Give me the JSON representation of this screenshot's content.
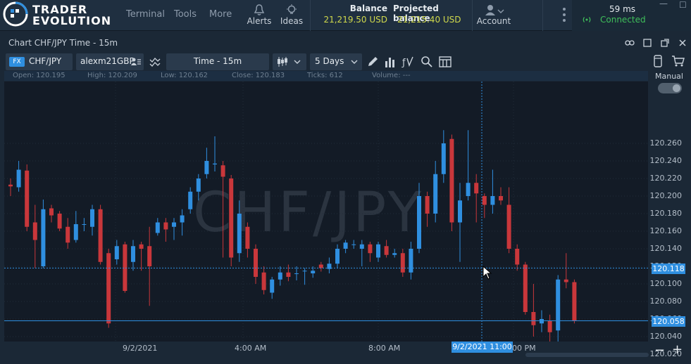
{
  "app": {
    "logo_line1": "TRADER",
    "logo_line2": "EVOLUTION",
    "menu": [
      "Terminal",
      "Tools",
      "More"
    ],
    "alerts_label": "Alerts",
    "ideas_label": "Ideas",
    "balance_label": "Balance",
    "balance_value": "21,219.50 USD",
    "projected_label": "Projected balance",
    "projected_value": "21,215.40 USD",
    "account_label": "Account",
    "ping": "59 ms",
    "connection": "Connected"
  },
  "chart_window": {
    "title": "Chart CHF/JPY Time - 15m",
    "fx_badge": "FX",
    "symbol": "CHF/JPY",
    "account": "alexm21GBP",
    "timeframe": "Time - 15m",
    "range": "5 Days",
    "manual_label": "Manual"
  },
  "info": {
    "open": "Open:  120.195",
    "high": "High:  120.209",
    "low": "Low:  120.162",
    "close": "Close:  120.183",
    "ticks": "Ticks:  612",
    "volume": "Volume:  ---"
  },
  "colors": {
    "up": "#2f8fe0",
    "down": "#c9373b",
    "accent": "#2f8fe0"
  },
  "chart_data": {
    "type": "candlestick",
    "title": "CHF/JPY",
    "ylim": [
      120.0,
      120.28
    ],
    "y_ticks": [
      "120.260",
      "120.240",
      "120.220",
      "120.200",
      "120.180",
      "120.160",
      "120.140",
      "120.120",
      "120.100",
      "120.080",
      "120.060",
      "120.040",
      "120.020"
    ],
    "x_ticks": [
      "9/2/2021",
      "4:00 AM",
      "8:00 AM",
      "00 PM"
    ],
    "crosshair_price": "120.118",
    "crosshair_time": "9/2/2021 11:00",
    "last_price": "120.058",
    "candles": [
      {
        "i": 0,
        "o": 120.213,
        "c": 120.211,
        "h": 120.22,
        "l": 120.2
      },
      {
        "i": 1,
        "o": 120.21,
        "c": 120.23,
        "h": 120.24,
        "l": 120.205
      },
      {
        "i": 2,
        "o": 120.229,
        "c": 120.165,
        "h": 120.236,
        "l": 120.16
      },
      {
        "i": 3,
        "o": 120.17,
        "c": 120.15,
        "h": 120.19,
        "l": 120.118
      },
      {
        "i": 4,
        "o": 120.12,
        "c": 120.185,
        "h": 120.196,
        "l": 120.118
      },
      {
        "i": 5,
        "o": 120.186,
        "c": 120.178,
        "h": 120.19,
        "l": 120.17
      },
      {
        "i": 6,
        "o": 120.18,
        "c": 120.163,
        "h": 120.183,
        "l": 120.16
      },
      {
        "i": 7,
        "o": 120.165,
        "c": 120.147,
        "h": 120.175,
        "l": 120.14
      },
      {
        "i": 8,
        "o": 120.15,
        "c": 120.168,
        "h": 120.183,
        "l": 120.147
      },
      {
        "i": 9,
        "o": 120.168,
        "c": 120.168,
        "h": 120.175,
        "l": 120.16
      },
      {
        "i": 10,
        "o": 120.165,
        "c": 120.185,
        "h": 120.19,
        "l": 120.155
      },
      {
        "i": 11,
        "o": 120.185,
        "c": 120.125,
        "h": 120.19,
        "l": 120.122
      },
      {
        "i": 12,
        "o": 120.135,
        "c": 120.055,
        "h": 120.14,
        "l": 120.05
      },
      {
        "i": 13,
        "o": 120.128,
        "c": 120.143,
        "h": 120.15,
        "l": 120.122
      },
      {
        "i": 14,
        "o": 120.145,
        "c": 120.092,
        "h": 120.148,
        "l": 120.09
      },
      {
        "i": 15,
        "o": 120.125,
        "c": 120.143,
        "h": 120.15,
        "l": 120.115
      },
      {
        "i": 16,
        "o": 120.145,
        "c": 120.14,
        "h": 120.148,
        "l": 120.115
      },
      {
        "i": 17,
        "o": 120.143,
        "c": 120.12,
        "h": 120.165,
        "l": 120.075
      },
      {
        "i": 18,
        "o": 120.158,
        "c": 120.17,
        "h": 120.175,
        "l": 120.155
      },
      {
        "i": 19,
        "o": 120.17,
        "c": 120.162,
        "h": 120.175,
        "l": 120.148
      },
      {
        "i": 20,
        "o": 120.165,
        "c": 120.17,
        "h": 120.175,
        "l": 120.15
      },
      {
        "i": 21,
        "o": 120.17,
        "c": 120.178,
        "h": 120.185,
        "l": 120.155
      },
      {
        "i": 22,
        "o": 120.185,
        "c": 120.205,
        "h": 120.21,
        "l": 120.18
      },
      {
        "i": 23,
        "o": 120.205,
        "c": 120.22,
        "h": 120.225,
        "l": 120.195
      },
      {
        "i": 24,
        "o": 120.225,
        "c": 120.24,
        "h": 120.255,
        "l": 120.22
      },
      {
        "i": 25,
        "o": 120.236,
        "c": 120.237,
        "h": 120.268,
        "l": 120.228
      },
      {
        "i": 26,
        "o": 120.235,
        "c": 120.222,
        "h": 120.24,
        "l": 120.13
      },
      {
        "i": 27,
        "o": 120.22,
        "c": 120.13,
        "h": 120.224,
        "l": 120.12
      },
      {
        "i": 28,
        "o": 120.135,
        "c": 120.18,
        "h": 120.195,
        "l": 120.125
      },
      {
        "i": 29,
        "o": 120.165,
        "c": 120.14,
        "h": 120.17,
        "l": 120.13
      },
      {
        "i": 30,
        "o": 120.14,
        "c": 120.108,
        "h": 120.145,
        "l": 120.1
      },
      {
        "i": 31,
        "o": 120.113,
        "c": 120.093,
        "h": 120.12,
        "l": 120.088
      },
      {
        "i": 32,
        "o": 120.09,
        "c": 120.105,
        "h": 120.108,
        "l": 120.083
      },
      {
        "i": 33,
        "o": 120.105,
        "c": 120.113,
        "h": 120.12,
        "l": 120.098
      },
      {
        "i": 34,
        "o": 120.113,
        "c": 120.108,
        "h": 120.122,
        "l": 120.103
      },
      {
        "i": 35,
        "o": 120.112,
        "c": 120.112,
        "h": 120.12,
        "l": 120.104
      },
      {
        "i": 36,
        "o": 120.115,
        "c": 120.115,
        "h": 120.118,
        "l": 120.099
      },
      {
        "i": 37,
        "o": 120.112,
        "c": 120.115,
        "h": 120.12,
        "l": 120.107
      },
      {
        "i": 38,
        "o": 120.122,
        "c": 120.118,
        "h": 120.125,
        "l": 120.114
      },
      {
        "i": 39,
        "o": 120.117,
        "c": 120.123,
        "h": 120.13,
        "l": 120.112
      },
      {
        "i": 40,
        "o": 120.123,
        "c": 120.14,
        "h": 120.145,
        "l": 120.118
      },
      {
        "i": 41,
        "o": 120.14,
        "c": 120.147,
        "h": 120.15,
        "l": 120.135
      },
      {
        "i": 42,
        "o": 120.145,
        "c": 120.145,
        "h": 120.15,
        "l": 120.14
      },
      {
        "i": 43,
        "o": 120.14,
        "c": 120.145,
        "h": 120.15,
        "l": 120.12
      },
      {
        "i": 44,
        "o": 120.145,
        "c": 120.135,
        "h": 120.148,
        "l": 120.125
      },
      {
        "i": 45,
        "o": 120.13,
        "c": 120.145,
        "h": 120.148,
        "l": 120.125
      },
      {
        "i": 46,
        "o": 120.143,
        "c": 120.133,
        "h": 120.15,
        "l": 120.13
      },
      {
        "i": 47,
        "o": 120.133,
        "c": 120.135,
        "h": 120.14,
        "l": 120.13
      },
      {
        "i": 48,
        "o": 120.135,
        "c": 120.113,
        "h": 120.14,
        "l": 120.108
      },
      {
        "i": 49,
        "o": 120.113,
        "c": 120.14,
        "h": 120.148,
        "l": 120.105
      },
      {
        "i": 50,
        "o": 120.14,
        "c": 120.2,
        "h": 120.215,
        "l": 120.135
      },
      {
        "i": 51,
        "o": 120.2,
        "c": 120.18,
        "h": 120.205,
        "l": 120.165
      },
      {
        "i": 52,
        "o": 120.18,
        "c": 120.225,
        "h": 120.24,
        "l": 120.17
      },
      {
        "i": 53,
        "o": 120.225,
        "c": 120.26,
        "h": 120.275,
        "l": 120.215
      },
      {
        "i": 54,
        "o": 120.265,
        "c": 120.17,
        "h": 120.27,
        "l": 120.16
      },
      {
        "i": 55,
        "o": 120.17,
        "c": 120.195,
        "h": 120.215,
        "l": 120.125
      },
      {
        "i": 56,
        "o": 120.2,
        "c": 120.215,
        "h": 120.275,
        "l": 120.195
      },
      {
        "i": 57,
        "o": 120.215,
        "c": 120.203,
        "h": 120.225,
        "l": 120.17
      },
      {
        "i": 58,
        "o": 120.2,
        "c": 120.19,
        "h": 120.203,
        "l": 120.175
      },
      {
        "i": 59,
        "o": 120.19,
        "c": 120.2,
        "h": 120.23,
        "l": 120.18
      },
      {
        "i": 60,
        "o": 120.2,
        "c": 120.195,
        "h": 120.21,
        "l": 120.19
      },
      {
        "i": 61,
        "o": 120.19,
        "c": 120.14,
        "h": 120.21,
        "l": 120.135
      },
      {
        "i": 62,
        "o": 120.14,
        "c": 120.122,
        "h": 120.145,
        "l": 120.115
      },
      {
        "i": 63,
        "o": 120.122,
        "c": 120.068,
        "h": 120.125,
        "l": 120.065
      },
      {
        "i": 64,
        "o": 120.068,
        "c": 120.053,
        "h": 120.1,
        "l": 120.04
      },
      {
        "i": 65,
        "o": 120.055,
        "c": 120.06,
        "h": 120.07,
        "l": 120.045
      },
      {
        "i": 66,
        "o": 120.058,
        "c": 120.045,
        "h": 120.065,
        "l": 120.03
      },
      {
        "i": 67,
        "o": 120.047,
        "c": 120.105,
        "h": 120.11,
        "l": 120.02
      },
      {
        "i": 68,
        "o": 120.105,
        "c": 120.102,
        "h": 120.135,
        "l": 120.095
      },
      {
        "i": 69,
        "o": 120.102,
        "c": 120.058,
        "h": 120.105,
        "l": 120.055
      }
    ]
  }
}
